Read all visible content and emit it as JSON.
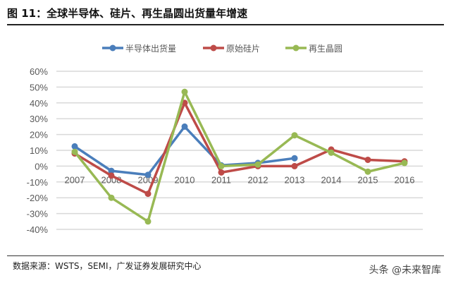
{
  "title": "图 11：全球半导体、硅片、再生晶圆出货量年增速",
  "source": "数据来源：WSTS，SEMI，广发证券发展研究中心",
  "watermark": "头条 @未来智库",
  "chart_data": {
    "type": "line",
    "title": "",
    "categories": [
      "2007",
      "2008",
      "2009",
      "2010",
      "2011",
      "2012",
      "2013",
      "2014",
      "2015",
      "2016"
    ],
    "ylim": [
      -40,
      60
    ],
    "yticks": [
      60,
      50,
      40,
      30,
      20,
      10,
      0,
      -10,
      -20,
      -30,
      -40
    ],
    "ytick_labels": [
      "60%",
      "50%",
      "40%",
      "30%",
      "20%",
      "10%",
      "0%",
      "-10%",
      "-20%",
      "-30%",
      "-40%"
    ],
    "grid": true,
    "legend_position": "top",
    "series": [
      {
        "name": "半导体出货量",
        "color": "#4a7ebb",
        "values": [
          12.5,
          -3,
          -5.5,
          25,
          0.5,
          2,
          5,
          null,
          null,
          null
        ]
      },
      {
        "name": "原始硅片",
        "color": "#be4b48",
        "values": [
          8,
          -6,
          -17.5,
          40,
          -4,
          0,
          0,
          10.5,
          4,
          3
        ]
      },
      {
        "name": "再生晶圆",
        "color": "#98b954",
        "values": [
          9,
          -20,
          -35,
          47,
          0,
          1,
          19.5,
          8.5,
          -3.5,
          2
        ]
      }
    ]
  }
}
